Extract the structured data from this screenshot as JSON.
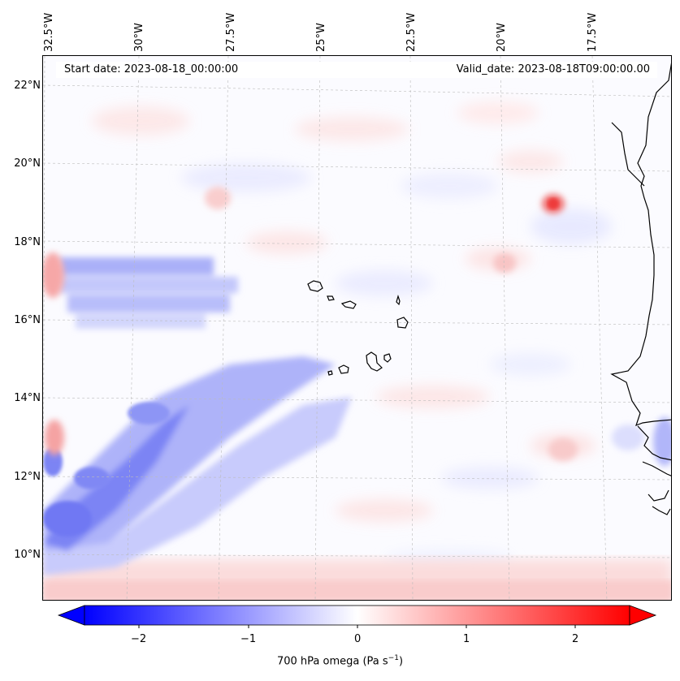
{
  "map": {
    "start_date": "Start date: 2023-08-18_00:00:00",
    "valid_date": "Valid_date: 2023-08-18T09:00:00.00",
    "lat_labels": [
      "22°N",
      "20°N",
      "18°N",
      "16°N",
      "14°N",
      "12°N",
      "10°N"
    ],
    "lon_labels": [
      "32.5°W",
      "30°W",
      "27.5°W",
      "25°W",
      "22.5°W",
      "20°W",
      "17.5°W"
    ],
    "variable": "700 hPa omega",
    "units": "Pa s",
    "units_exponent": "−1"
  },
  "colorbar": {
    "ticks": [
      "−2",
      "−1",
      "0",
      "1",
      "2"
    ],
    "range": [
      -2.75,
      2.75
    ],
    "colormap": "bwr",
    "low_color": "#0000ff",
    "mid_color": "#ffffff",
    "high_color": "#ff0000",
    "extend": "both"
  },
  "colors": {
    "coastline": "#000000",
    "gridline": "#bbbbbb"
  }
}
